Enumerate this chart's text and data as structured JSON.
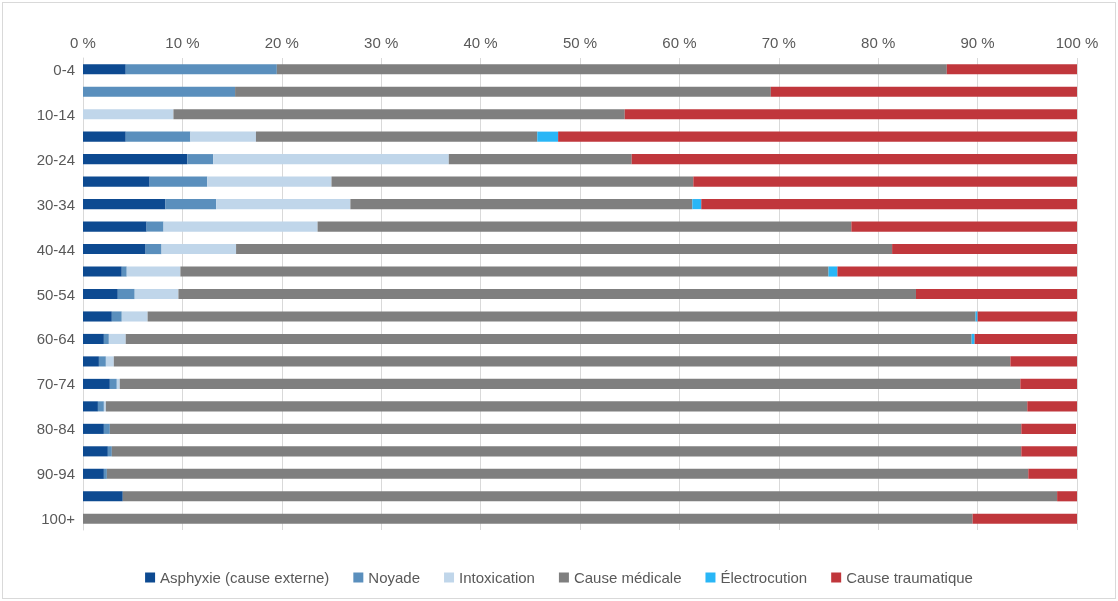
{
  "chart_data": {
    "type": "bar",
    "orientation": "horizontal",
    "stacked": true,
    "legend": "bottom",
    "grid": "x",
    "categories": [
      "0-4",
      null,
      "10-14",
      null,
      "20-24",
      null,
      "30-34",
      null,
      "40-44",
      null,
      "50-54",
      null,
      "60-64",
      null,
      "70-74",
      null,
      "80-84",
      null,
      "90-94",
      null,
      "100+"
    ],
    "xlim": [
      0,
      100
    ],
    "xticks": [
      {
        "value": 0,
        "label": "0 %"
      },
      {
        "value": 10,
        "label": "10 %"
      },
      {
        "value": 20,
        "label": "20 %"
      },
      {
        "value": 30,
        "label": "30 %"
      },
      {
        "value": 40,
        "label": "40 %"
      },
      {
        "value": 50,
        "label": "50 %"
      },
      {
        "value": 60,
        "label": "60 %"
      },
      {
        "value": 70,
        "label": "70 %"
      },
      {
        "value": 80,
        "label": "80 %"
      },
      {
        "value": 90,
        "label": "90 %"
      },
      {
        "value": 100,
        "label": "100 %"
      }
    ],
    "series": [
      {
        "name": "Asphyxie (cause externe)",
        "color": "#0d4a91",
        "values": [
          4.3,
          0,
          0,
          4.3,
          10.5,
          6.7,
          8.3,
          6.4,
          6.3,
          3.9,
          3.5,
          2.9,
          2.1,
          1.6,
          2.7,
          1.5,
          2.1,
          2.5,
          2.1,
          4.0,
          0
        ]
      },
      {
        "name": "Noyade",
        "color": "#5a8fbd",
        "values": [
          15.2,
          15.3,
          0,
          6.5,
          2.6,
          5.8,
          5.1,
          1.7,
          1.6,
          0.5,
          1.7,
          1.0,
          0.5,
          0.7,
          0.7,
          0.6,
          0.6,
          0.4,
          0.3,
          0,
          0
        ]
      },
      {
        "name": "Intoxication",
        "color": "#c0d6ea",
        "values": [
          0,
          0,
          9.1,
          6.6,
          23.7,
          12.5,
          13.5,
          15.5,
          7.5,
          5.4,
          4.4,
          2.6,
          1.7,
          0.8,
          0.3,
          0.2,
          null,
          0,
          0,
          0,
          0
        ]
      },
      {
        "name": "Cause médicale",
        "color": "#7f7f7f",
        "values": [
          67.4,
          53.9,
          45.4,
          28.3,
          18.4,
          36.4,
          34.4,
          53.7,
          66.0,
          65.2,
          74.2,
          83.3,
          85.1,
          90.2,
          90.6,
          92.7,
          91.7,
          91.5,
          92.7,
          94.0,
          89.5
        ]
      },
      {
        "name": "Électrocution",
        "color": "#29b6f6",
        "values": [
          0,
          0,
          0,
          2.1,
          0,
          0,
          0.9,
          0,
          0,
          0.9,
          0,
          0.2,
          0.3,
          0,
          0,
          0,
          0,
          0,
          0,
          0,
          0
        ]
      },
      {
        "name": "Cause traumatique",
        "color": "#c0373c",
        "values": [
          13.1,
          30.8,
          45.5,
          52.2,
          44.8,
          38.6,
          37.8,
          22.7,
          18.6,
          24.1,
          16.2,
          10.0,
          10.3,
          6.7,
          5.7,
          5.0,
          5.5,
          5.6,
          4.9,
          2.0,
          10.5
        ]
      }
    ]
  }
}
